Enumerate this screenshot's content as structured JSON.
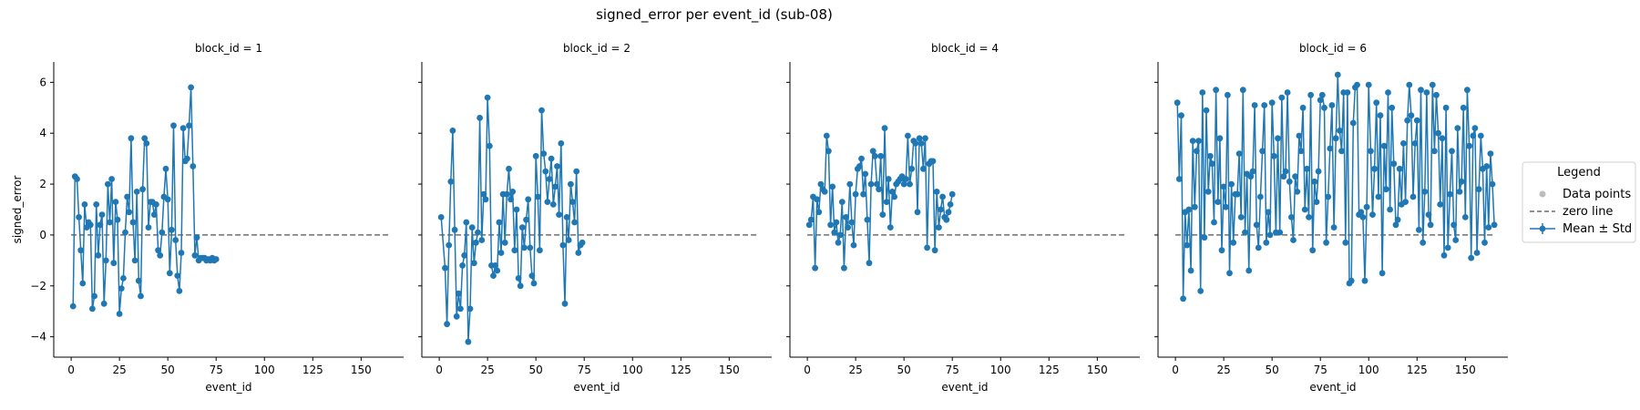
{
  "chart_data": {
    "type": "line",
    "title": "signed_error per event_id (sub-08)",
    "xlabel": "event_id",
    "ylabel": "signed_error",
    "xlim": [
      -9,
      172
    ],
    "ylim": [
      -4.8,
      6.8
    ],
    "xticks": [
      0,
      25,
      50,
      75,
      100,
      125,
      150
    ],
    "yticks": [
      -4,
      -2,
      0,
      2,
      4,
      6
    ],
    "zero_line": 0,
    "color": "#1f77b4",
    "zero_line_color": "#6e6e6e",
    "legend": {
      "title": "Legend",
      "placement": "right",
      "items": [
        {
          "label": "Data points",
          "kind": "point",
          "color": "#bdbdbd"
        },
        {
          "label": "zero line",
          "kind": "dashed",
          "color": "#6e6e6e"
        },
        {
          "label": "Mean ± Std",
          "kind": "errorbar",
          "color": "#1f77b4"
        }
      ]
    },
    "panels": [
      {
        "label": "block_id = 1",
        "x": [
          1,
          2,
          3,
          4,
          5,
          6,
          7,
          8,
          9,
          10,
          11,
          12,
          13,
          14,
          15,
          16,
          17,
          18,
          19,
          20,
          21,
          22,
          23,
          24,
          25,
          26,
          27,
          28,
          29,
          30,
          31,
          32,
          33,
          34,
          35,
          36,
          37,
          38,
          39,
          40,
          41,
          42,
          43,
          44,
          45,
          46,
          47,
          48,
          49,
          50,
          51,
          52,
          53,
          54,
          55,
          56,
          57,
          58,
          59,
          60,
          61,
          62,
          63,
          64,
          65,
          66,
          67,
          68,
          69,
          70,
          71,
          72,
          73,
          74,
          75
        ],
        "y": [
          -2.8,
          2.3,
          2.2,
          0.7,
          -0.6,
          -1.9,
          1.2,
          0.3,
          0.5,
          0.4,
          -2.9,
          -2.4,
          1.2,
          -0.8,
          0.4,
          0.8,
          -2.7,
          -1.0,
          2.0,
          0.5,
          2.2,
          -1.1,
          1.3,
          0.6,
          -3.1,
          -2.1,
          -1.7,
          0.1,
          1.5,
          0.9,
          3.8,
          0.5,
          -1.0,
          1.7,
          -1.8,
          -2.4,
          1.8,
          3.8,
          3.6,
          0.3,
          1.3,
          1.3,
          0.8,
          1.2,
          -0.6,
          -0.8,
          0.1,
          1.5,
          2.6,
          1.4,
          -1.5,
          0.2,
          4.3,
          -0.2,
          -1.6,
          -2.2,
          -0.7,
          4.2,
          2.9,
          3.0,
          4.3,
          5.8,
          2.7,
          -0.8,
          -0.1,
          -1.0,
          -0.9,
          -0.9,
          -0.9,
          -1.0,
          -0.95,
          -1.0,
          -0.9,
          -1.0,
          -0.95
        ]
      },
      {
        "label": "block_id = 2",
        "x": [
          1,
          3,
          4,
          5,
          6,
          7,
          8,
          9,
          10,
          11,
          12,
          13,
          14,
          15,
          16,
          17,
          18,
          19,
          20,
          21,
          22,
          23,
          24,
          25,
          26,
          27,
          28,
          29,
          30,
          31,
          32,
          33,
          34,
          35,
          36,
          37,
          38,
          39,
          40,
          41,
          42,
          43,
          44,
          45,
          46,
          47,
          48,
          49,
          50,
          51,
          52,
          53,
          54,
          55,
          56,
          57,
          58,
          59,
          60,
          61,
          62,
          63,
          64,
          65,
          66,
          67,
          68,
          69,
          70,
          71,
          72,
          73,
          74
        ],
        "y": [
          0.7,
          -1.3,
          -3.5,
          -0.4,
          2.1,
          4.1,
          0.2,
          -3.2,
          -2.3,
          -2.9,
          -1.2,
          -0.8,
          0.5,
          -4.2,
          -2.9,
          0.3,
          -1.1,
          -0.3,
          0.1,
          4.6,
          -0.2,
          1.6,
          1.4,
          5.4,
          3.5,
          -1.2,
          -1.6,
          -1.2,
          -1.4,
          0.5,
          -0.7,
          1.6,
          -0.3,
          1.6,
          2.6,
          1.4,
          1.7,
          -0.6,
          1.0,
          -1.7,
          -2.0,
          0.3,
          -0.5,
          0.6,
          1.4,
          -0.5,
          -1.6,
          -1.9,
          3.1,
          1.5,
          -0.6,
          4.9,
          3.2,
          2.5,
          1.3,
          2.2,
          3.0,
          1.2,
          1.9,
          2.7,
          0.8,
          3.6,
          -0.4,
          -2.7,
          0.7,
          -0.2,
          2.0,
          1.3,
          0.5,
          2.5,
          -0.7,
          -0.4,
          -0.3
        ]
      },
      {
        "label": "block_id = 4",
        "x": [
          1,
          2,
          3,
          4,
          5,
          6,
          7,
          8,
          9,
          10,
          11,
          12,
          13,
          14,
          15,
          16,
          17,
          18,
          19,
          20,
          21,
          22,
          23,
          24,
          25,
          26,
          27,
          28,
          29,
          30,
          31,
          32,
          33,
          34,
          35,
          36,
          37,
          38,
          39,
          40,
          41,
          42,
          43,
          44,
          45,
          46,
          47,
          48,
          49,
          50,
          51,
          52,
          53,
          54,
          55,
          56,
          57,
          58,
          59,
          60,
          61,
          62,
          63,
          64,
          65,
          66,
          67,
          68,
          69,
          70,
          71,
          72,
          73,
          74,
          75
        ],
        "y": [
          0.4,
          0.6,
          1.5,
          -1.3,
          1.4,
          0.9,
          2.0,
          1.8,
          1.7,
          3.9,
          3.3,
          0.4,
          1.9,
          0.1,
          0.5,
          -0.3,
          0.0,
          1.3,
          -1.3,
          0.7,
          0.3,
          2.0,
          0.5,
          -0.4,
          1.6,
          2.6,
          2.7,
          3.0,
          1.6,
          2.4,
          0.6,
          -1.1,
          2.0,
          3.3,
          3.1,
          2.0,
          1.8,
          3.1,
          0.8,
          4.2,
          1.3,
          2.2,
          0.3,
          1.7,
          1.5,
          2.0,
          2.1,
          2.2,
          2.3,
          2.0,
          2.2,
          3.9,
          2.0,
          2.6,
          3.7,
          3.6,
          0.9,
          3.8,
          3.6,
          2.6,
          3.8,
          -0.5,
          2.8,
          2.9,
          2.9,
          -0.6,
          1.7,
          0.3,
          1.0,
          1.5,
          0.7,
          0.6,
          0.9,
          1.2,
          1.6
        ]
      },
      {
        "label": "block_id = 6",
        "x": [
          1,
          2,
          3,
          4,
          5,
          6,
          7,
          8,
          9,
          10,
          11,
          12,
          13,
          14,
          15,
          16,
          17,
          18,
          19,
          20,
          21,
          22,
          23,
          24,
          25,
          26,
          27,
          28,
          29,
          30,
          31,
          32,
          33,
          34,
          35,
          36,
          37,
          38,
          39,
          40,
          41,
          42,
          43,
          44,
          45,
          46,
          47,
          48,
          49,
          50,
          51,
          52,
          53,
          54,
          55,
          56,
          57,
          58,
          59,
          60,
          61,
          62,
          63,
          64,
          65,
          66,
          67,
          68,
          69,
          70,
          71,
          72,
          73,
          74,
          75,
          76,
          77,
          78,
          79,
          80,
          81,
          82,
          83,
          84,
          85,
          86,
          87,
          88,
          89,
          90,
          91,
          92,
          93,
          94,
          95,
          96,
          97,
          98,
          99,
          100,
          101,
          102,
          103,
          104,
          105,
          106,
          107,
          108,
          109,
          110,
          111,
          112,
          113,
          114,
          115,
          116,
          117,
          118,
          119,
          120,
          121,
          122,
          123,
          124,
          125,
          126,
          127,
          128,
          129,
          130,
          131,
          132,
          133,
          134,
          135,
          136,
          137,
          138,
          139,
          140,
          141,
          142,
          143,
          144,
          145,
          146,
          147,
          148,
          149,
          150,
          151,
          152,
          153,
          154,
          155,
          156,
          157,
          158,
          159,
          160,
          161,
          162,
          163,
          164,
          165
        ],
        "y": [
          5.2,
          2.2,
          4.7,
          -2.5,
          0.9,
          -0.4,
          1.0,
          -1.4,
          3.7,
          1.1,
          3.3,
          3.7,
          -2.2,
          5.6,
          -0.1,
          4.9,
          1.7,
          3.1,
          2.8,
          0.5,
          5.7,
          1.3,
          3.8,
          -0.6,
          1.9,
          1.1,
          5.5,
          -1.5,
          2.0,
          -0.3,
          1.6,
          1.6,
          3.2,
          0.7,
          5.7,
          0.1,
          2.4,
          -1.4,
          2.3,
          2.5,
          5.1,
          0.4,
          -0.5,
          1.5,
          3.3,
          5.1,
          -0.3,
          0.9,
          0.0,
          5.2,
          3.1,
          0.1,
          3.8,
          0.1,
          5.4,
          2.3,
          2.5,
          5.6,
          2.1,
          0.7,
          -0.2,
          2.3,
          1.7,
          3.9,
          3.3,
          5.0,
          1.0,
          2.6,
          0.7,
          5.5,
          -0.6,
          2.1,
          1.3,
          2.5,
          5.3,
          5.5,
          5.0,
          -0.3,
          1.5,
          3.4,
          5.1,
          0.3,
          3.8,
          6.3,
          4.1,
          3.3,
          5.6,
          -0.3,
          5.6,
          -1.9,
          -1.8,
          4.4,
          5.8,
          5.9,
          0.8,
          0.9,
          0.7,
          -1.8,
          1.1,
          5.9,
          3.3,
          0.8,
          2.6,
          5.2,
          1.5,
          4.7,
          -1.5,
          3.5,
          1.8,
          5.6,
          1.0,
          5.0,
          2.8,
          0.4,
          0.6,
          2.6,
          1.2,
          3.6,
          1.3,
          4.5,
          5.9,
          4.7,
          1.5,
          3.6,
          4.5,
          0.2,
          5.7,
          -0.3,
          1.7,
          5.6,
          0.8,
          0.4,
          5.9,
          3.3,
          5.5,
          4.0,
          1.2,
          3.8,
          -0.8,
          5.0,
          -0.5,
          1.6,
          3.3,
          0.4,
          -0.2,
          4.2,
          1.7,
          2.1,
          5.0,
          0.7,
          5.7,
          3.5,
          -0.9,
          3.9,
          4.2,
          -0.7,
          1.8,
          3.9,
          2.6,
          -0.3,
          2.7,
          0.3,
          3.2,
          2.0,
          0.4
        ]
      }
    ]
  }
}
